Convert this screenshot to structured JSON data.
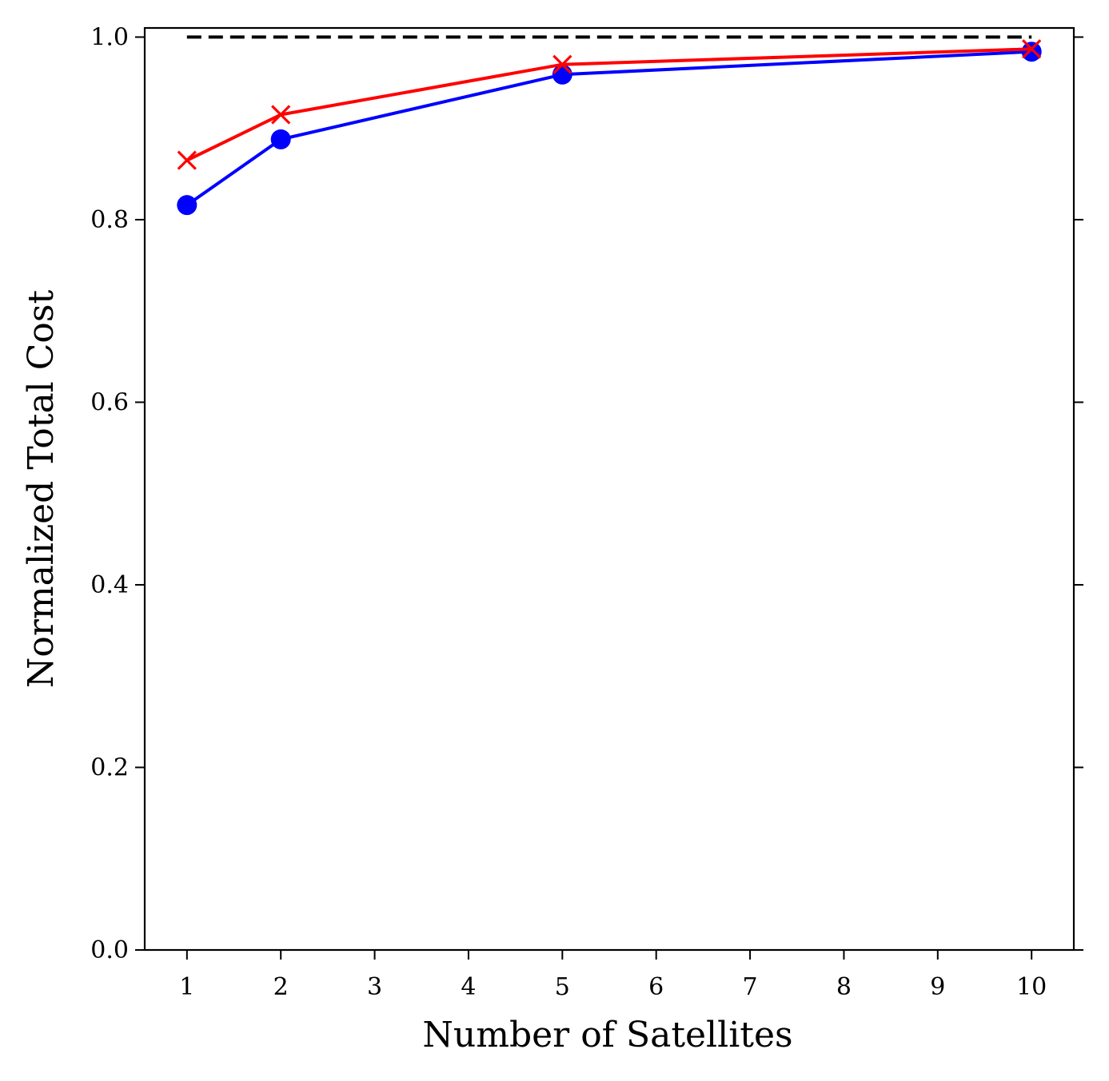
{
  "chart_data": {
    "type": "line",
    "title": "",
    "xlabel": "Number of Satellites",
    "ylabel": "Normalized Total Cost",
    "xlim": [
      0.55,
      10.45
    ],
    "ylim": [
      0.0,
      1.01
    ],
    "xticks": [
      1,
      2,
      3,
      4,
      5,
      6,
      7,
      8,
      9,
      10
    ],
    "yticks": [
      0.0,
      0.2,
      0.4,
      0.6,
      0.8,
      1.0
    ],
    "ytick_labels": [
      "0.0",
      "0.2",
      "0.4",
      "0.6",
      "0.8",
      "1.0"
    ],
    "grid": false,
    "series": [
      {
        "name": "series-blue",
        "color": "#0000ff",
        "marker": "circle",
        "line_style": "solid",
        "x": [
          1,
          2,
          5,
          10
        ],
        "y": [
          0.816,
          0.888,
          0.959,
          0.984
        ]
      },
      {
        "name": "series-red",
        "color": "#ff0000",
        "marker": "x",
        "line_style": "solid",
        "x": [
          1,
          2,
          5,
          10
        ],
        "y": [
          0.865,
          0.915,
          0.97,
          0.987
        ]
      },
      {
        "name": "reference",
        "color": "#000000",
        "marker": "none",
        "line_style": "dashed",
        "x": [
          1,
          10
        ],
        "y": [
          1.0,
          1.0
        ]
      }
    ]
  }
}
